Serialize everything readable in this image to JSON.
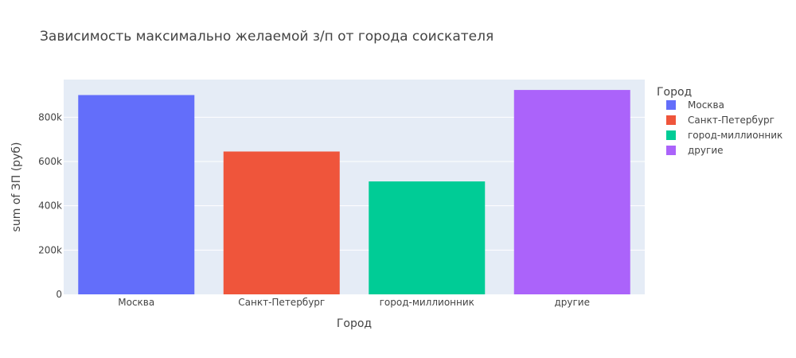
{
  "chart_data": {
    "type": "bar",
    "title": "Зависимость максимально желаемой з/п от города соискателя",
    "xlabel": "Город",
    "ylabel": "sum of ЗП (руб)",
    "categories": [
      "Москва",
      "Санкт-Петербург",
      "город-миллионник",
      "другие"
    ],
    "values": [
      900000,
      645000,
      510000,
      923000
    ],
    "colors": [
      "#636efa",
      "#ef553b",
      "#00cc96",
      "#ab63fa"
    ],
    "ylim": [
      0,
      970000
    ],
    "yticks": [
      0,
      200000,
      400000,
      600000,
      800000
    ],
    "ytick_labels": [
      "0",
      "200k",
      "400k",
      "600k",
      "800k"
    ],
    "grid": true,
    "legend": {
      "title": "Город",
      "position": "top-right",
      "entries": [
        "Москва",
        "Санкт-Петербург",
        "город-миллионник",
        "другие"
      ]
    },
    "plot_bgcolor": "#e5ecf6"
  }
}
